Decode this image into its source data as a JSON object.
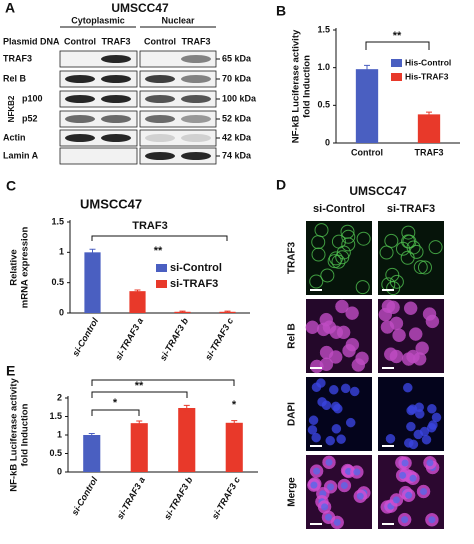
{
  "blot": {
    "panel_label": "A",
    "title": "UMSCC47",
    "fractions": [
      "Cytoplasmic",
      "Nuclear"
    ],
    "row_header": "Plasmid DNA",
    "lanes": [
      "Control",
      "TRAF3",
      "Control",
      "TRAF3"
    ],
    "group_label": "NFKB2",
    "rows": [
      {
        "name": "TRAF3",
        "size": "65 kDa"
      },
      {
        "name": "Rel B",
        "size": "70 kDa"
      },
      {
        "name": "p100",
        "size": "100 kDa"
      },
      {
        "name": "p52",
        "size": "52 kDa"
      },
      {
        "name": "Actin",
        "size": "42 kDa"
      },
      {
        "name": "Lamin A",
        "size": "74 kDa"
      }
    ]
  },
  "microscopy": {
    "panel_label": "D",
    "title": "UMSCC47",
    "columns": [
      "si-Control",
      "si-TRAF3"
    ],
    "rows": [
      "TRAF3",
      "Rel B",
      "DAPI",
      "Merge"
    ]
  },
  "chart_data": [
    {
      "type": "bar",
      "panel_label": "B",
      "categories": [
        "Control",
        "TRAF3"
      ],
      "series": [
        {
          "name": "His-Control",
          "color": "#4a5fc1",
          "values": [
            0.98,
            null
          ],
          "errors": [
            0.05,
            null
          ]
        },
        {
          "name": "His-TRAF3",
          "color": "#e8392a",
          "values": [
            null,
            0.38
          ],
          "errors": [
            null,
            0.03
          ]
        }
      ],
      "ylabel": [
        "NF-kB Luciferase activity",
        "fold Induction"
      ],
      "ylim": [
        0,
        1.5
      ],
      "yticks": [
        0,
        0.5,
        {
          "value": 1,
          "label": "1.0"
        },
        1.5
      ],
      "annotations": [
        "**"
      ]
    },
    {
      "type": "bar",
      "panel_label": "C",
      "title": "UMSCC47",
      "categories": [
        "si-Control",
        "si-TRAF3 a",
        "si-TRAF3 b",
        "si-TRAF3 c"
      ],
      "series": [
        {
          "name": "si-Control",
          "color": "#4a5fc1",
          "values": [
            1.0,
            null,
            null,
            null
          ],
          "errors": [
            0.05,
            null,
            null,
            null
          ]
        },
        {
          "name": "si-TRAF3",
          "color": "#e8392a",
          "values": [
            null,
            0.36,
            0.02,
            0.02
          ],
          "errors": [
            null,
            0.02,
            0.01,
            0.01
          ]
        }
      ],
      "ylabel": [
        "Relative",
        "mRNA expression"
      ],
      "ylim": [
        0,
        1.5
      ],
      "yticks": [
        0,
        0.5,
        1,
        1.5
      ],
      "annotations": [
        "TRAF3",
        "**"
      ]
    },
    {
      "type": "bar",
      "panel_label": "E",
      "categories": [
        "si-Control",
        "si-TRAF3 a",
        "si-TRAF3 b",
        "si-TRAF3 c"
      ],
      "values": [
        1.0,
        1.32,
        1.73,
        1.33
      ],
      "errors": [
        0.04,
        0.06,
        0.07,
        0.06
      ],
      "colors": [
        "#4a5fc1",
        "#e8392a",
        "#e8392a",
        "#e8392a"
      ],
      "ylabel": [
        "NF-kB Luciferase activity",
        "fold Induction"
      ],
      "ylim": [
        0,
        2
      ],
      "yticks": [
        0,
        0.5,
        1,
        1.5,
        2
      ],
      "annotations": [
        "*",
        "**",
        "*"
      ]
    }
  ]
}
